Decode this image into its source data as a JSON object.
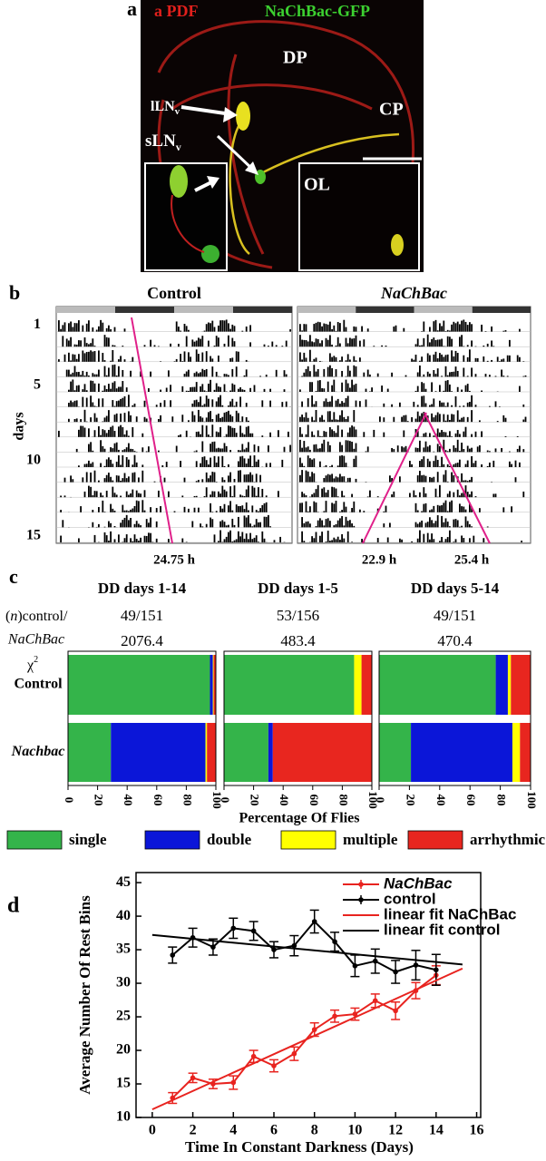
{
  "panel_a": {
    "label": "a",
    "stain_red": "a PDF",
    "stain_green": "NaChBac-GFP",
    "regions": {
      "dp": "DP",
      "cp": "CP",
      "ol": "OL"
    },
    "cells": [
      {
        "name": "lLN",
        "sub": "v"
      },
      {
        "name": "sLN",
        "sub": "v"
      }
    ]
  },
  "panel_b": {
    "label": "b",
    "axis_label": "days",
    "day_ticks": [
      1,
      5,
      10,
      15
    ],
    "groups": [
      {
        "title": "Control",
        "periods": [
          "24.75 h"
        ]
      },
      {
        "title": "NaChBac",
        "periods": [
          "22.9 h",
          "25.4 h"
        ]
      }
    ]
  },
  "panel_c": {
    "label": "c",
    "n_header": [
      "(",
      "n",
      ")control/",
      "NaChBac"
    ],
    "chi_header": {
      "symbol": "χ",
      "sup": "2"
    },
    "chart_data": {
      "type": "stacked_barh",
      "xlabel": "Percentage Of Flies",
      "xlim": [
        0,
        100
      ],
      "xticks": [
        0,
        20,
        40,
        60,
        80,
        100
      ],
      "row_labels": [
        "Control",
        "Nachbac"
      ],
      "series": [
        {
          "name": "single",
          "color": "#34b44a"
        },
        {
          "name": "double",
          "color": "#0b16d8"
        },
        {
          "name": "multiple",
          "color": "#ffff00"
        },
        {
          "name": "arrhythmic",
          "color": "#e8261f"
        }
      ],
      "groups": [
        {
          "title": "DD days 1-14",
          "n": "49/151",
          "chi2": 2076.4,
          "rows": [
            [
              96,
              2,
              0.5,
              1.5
            ],
            [
              29,
              64,
              1,
              6
            ]
          ]
        },
        {
          "title": "DD days 1-5",
          "n": "53/156",
          "chi2": 483.4,
          "rows": [
            [
              88,
              0,
              5,
              7
            ],
            [
              30,
              3,
              0,
              67
            ]
          ]
        },
        {
          "title": "DD days 5-14",
          "n": "49/151",
          "chi2": 470.4,
          "rows": [
            [
              77,
              8,
              2,
              13
            ],
            [
              21,
              67,
              5,
              7
            ]
          ]
        }
      ]
    }
  },
  "panel_d": {
    "label": "d",
    "chart_data": {
      "type": "line",
      "xlabel": "Time In Constant Darkness (Days)",
      "ylabel": "Average Number Of Rest Bins",
      "xlim": [
        -0.8,
        16.2
      ],
      "xticks": [
        0,
        2,
        4,
        6,
        8,
        10,
        12,
        14,
        16
      ],
      "ylim": [
        10,
        46.5
      ],
      "yticks": [
        10,
        15,
        20,
        25,
        30,
        35,
        40,
        45
      ],
      "series": [
        {
          "name": "NaChBac",
          "color": "#e8231f",
          "x": [
            1,
            2,
            3,
            4,
            5,
            6,
            7,
            8,
            9,
            10,
            11,
            12,
            13,
            14
          ],
          "values": [
            12.9,
            15.9,
            15.0,
            15.2,
            19.1,
            17.7,
            19.5,
            23.1,
            25.1,
            25.4,
            27.4,
            25.9,
            28.9,
            31.2
          ],
          "errors": [
            0.8,
            0.7,
            0.7,
            1.0,
            0.9,
            0.9,
            1.0,
            1.0,
            0.9,
            0.9,
            1.0,
            1.3,
            1.2,
            1.4
          ]
        },
        {
          "name": "control",
          "color": "#000000",
          "x": [
            1,
            2,
            3,
            4,
            5,
            6,
            7,
            8,
            9,
            10,
            11,
            12,
            13,
            14
          ],
          "values": [
            34.2,
            36.8,
            35.4,
            38.2,
            37.8,
            35.0,
            35.6,
            39.2,
            36.2,
            32.6,
            33.3,
            31.7,
            32.7,
            32.0
          ],
          "errors": [
            1.2,
            1.4,
            1.2,
            1.5,
            1.4,
            1.2,
            1.5,
            1.7,
            1.4,
            1.6,
            1.8,
            1.7,
            2.2,
            2.3
          ]
        },
        {
          "name": "linear fit NaChBac",
          "color": "#e8231f",
          "x": [
            0,
            15.3
          ],
          "values": [
            11.2,
            32.2
          ]
        },
        {
          "name": "linear fit control",
          "color": "#000000",
          "x": [
            0,
            15.3
          ],
          "values": [
            37.2,
            32.8
          ]
        }
      ]
    }
  }
}
